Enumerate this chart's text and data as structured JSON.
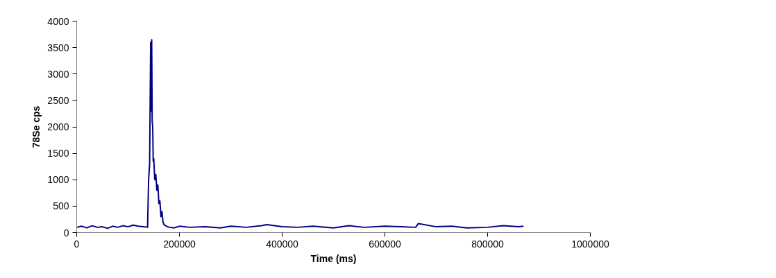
{
  "chart_data": {
    "type": "line",
    "xlabel": "Time (ms)",
    "ylabel": "78Se cps",
    "x": [
      0,
      10000,
      20000,
      30000,
      40000,
      50000,
      60000,
      70000,
      80000,
      90000,
      100000,
      110000,
      120000,
      130000,
      138000,
      140000,
      142000,
      144000,
      145000,
      146000,
      147000,
      148000,
      149000,
      150000,
      152000,
      154000,
      156000,
      158000,
      160000,
      162000,
      164000,
      166000,
      168000,
      170000,
      175000,
      180000,
      190000,
      200000,
      220000,
      250000,
      280000,
      300000,
      330000,
      360000,
      370000,
      400000,
      430000,
      460000,
      500000,
      530000,
      560000,
      600000,
      630000,
      660000,
      665000,
      700000,
      730000,
      760000,
      800000,
      830000,
      860000,
      870000
    ],
    "series": [
      {
        "color": "#000080",
        "values": [
          100,
          120,
          90,
          130,
          100,
          110,
          80,
          120,
          100,
          130,
          110,
          140,
          120,
          110,
          100,
          1000,
          1300,
          3600,
          2300,
          3650,
          2100,
          2000,
          1350,
          1400,
          1000,
          1100,
          800,
          900,
          550,
          600,
          300,
          400,
          200,
          150,
          120,
          100,
          90,
          120,
          100,
          110,
          90,
          120,
          100,
          130,
          150,
          110,
          100,
          120,
          90,
          130,
          100,
          120,
          110,
          100,
          170,
          110,
          120,
          90,
          100,
          130,
          110,
          120
        ]
      }
    ],
    "xlim": [
      0,
      1000000
    ],
    "ylim": [
      0,
      4000
    ],
    "xticks": [
      0,
      200000,
      400000,
      600000,
      800000,
      1000000
    ],
    "yticks": [
      0,
      500,
      1000,
      1500,
      2000,
      2500,
      3000,
      3500,
      4000
    ],
    "grid": false,
    "marker": "none",
    "line_style": "solid"
  }
}
